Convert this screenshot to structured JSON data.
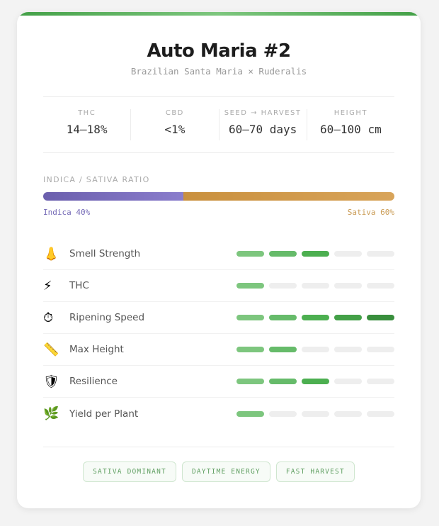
{
  "header": {
    "title": "Auto Maria #2",
    "subtitle": "Brazilian Santa Maria × Ruderalis"
  },
  "stats": [
    {
      "label": "THC",
      "value": "14–18%"
    },
    {
      "label": "CBD",
      "value": "<1%"
    },
    {
      "label": "SEED → HARVEST",
      "value": "60–70 days"
    },
    {
      "label": "HEIGHT",
      "value": "60–100 cm"
    }
  ],
  "ratio": {
    "label": "INDICA / SATIVA RATIO",
    "indica_percent": 40,
    "sativa_percent": 60,
    "indica_label": "Indica 40%",
    "sativa_label": "Sativa 60%",
    "indica_color": "#7469b6",
    "sativa_color": "#d09a4c"
  },
  "traits": [
    {
      "icon": "nose-icon",
      "glyph": "👃",
      "label": "Smell Strength",
      "level": 3
    },
    {
      "icon": "lightning-icon",
      "glyph": "⚡",
      "label": "THC",
      "level": 1
    },
    {
      "icon": "stopwatch-icon",
      "glyph": "⏱",
      "label": "Ripening Speed",
      "level": 5
    },
    {
      "icon": "ruler-icon",
      "glyph": "📏",
      "label": "Max Height",
      "level": 2
    },
    {
      "icon": "shield-icon",
      "glyph": "🛡",
      "label": "Resilience",
      "level": 3
    },
    {
      "icon": "leaf-icon",
      "glyph": "🌿",
      "label": "Yield per Plant",
      "level": 1
    }
  ],
  "max_level": 5,
  "segment_colors": [
    "#7dc67e",
    "#66bb6a",
    "#4caf50",
    "#43a047",
    "#388e3c"
  ],
  "tags": [
    "SATIVA DOMINANT",
    "DAYTIME ENERGY",
    "FAST HARVEST"
  ]
}
